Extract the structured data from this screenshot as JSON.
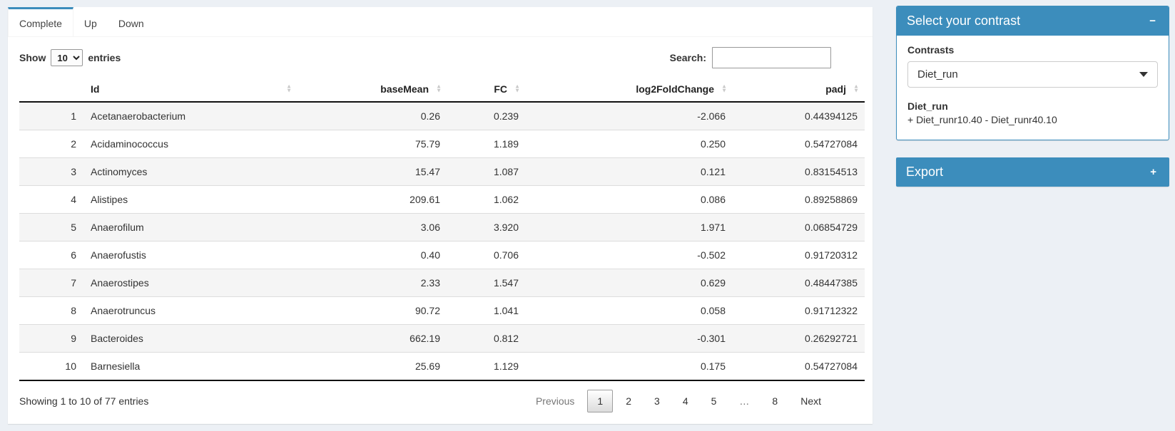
{
  "colors": {
    "primary": "#3c8dbc",
    "page_bg": "#ecf0f5"
  },
  "tabs": [
    {
      "label": "Complete",
      "active": true
    },
    {
      "label": "Up",
      "active": false
    },
    {
      "label": "Down",
      "active": false
    }
  ],
  "length_control": {
    "prefix": "Show",
    "value": "10",
    "suffix": "entries"
  },
  "search": {
    "label": "Search:",
    "value": ""
  },
  "table": {
    "columns": [
      {
        "label": "",
        "key": "index",
        "align": "left",
        "sortable": false
      },
      {
        "label": "Id",
        "key": "id",
        "align": "left",
        "sortable": true
      },
      {
        "label": "baseMean",
        "key": "baseMean",
        "align": "right",
        "sortable": true
      },
      {
        "label": "FC",
        "key": "fc",
        "align": "right",
        "sortable": true
      },
      {
        "label": "log2FoldChange",
        "key": "log2fc",
        "align": "right",
        "sortable": true
      },
      {
        "label": "padj",
        "key": "padj",
        "align": "right",
        "sortable": true
      }
    ],
    "rows": [
      {
        "index": "1",
        "id": "Acetanaerobacterium",
        "baseMean": "0.26",
        "fc": "0.239",
        "log2fc": "-2.066",
        "padj": "0.44394125"
      },
      {
        "index": "2",
        "id": "Acidaminococcus",
        "baseMean": "75.79",
        "fc": "1.189",
        "log2fc": "0.250",
        "padj": "0.54727084"
      },
      {
        "index": "3",
        "id": "Actinomyces",
        "baseMean": "15.47",
        "fc": "1.087",
        "log2fc": "0.121",
        "padj": "0.83154513"
      },
      {
        "index": "4",
        "id": "Alistipes",
        "baseMean": "209.61",
        "fc": "1.062",
        "log2fc": "0.086",
        "padj": "0.89258869"
      },
      {
        "index": "5",
        "id": "Anaerofilum",
        "baseMean": "3.06",
        "fc": "3.920",
        "log2fc": "1.971",
        "padj": "0.06854729"
      },
      {
        "index": "6",
        "id": "Anaerofustis",
        "baseMean": "0.40",
        "fc": "0.706",
        "log2fc": "-0.502",
        "padj": "0.91720312"
      },
      {
        "index": "7",
        "id": "Anaerostipes",
        "baseMean": "2.33",
        "fc": "1.547",
        "log2fc": "0.629",
        "padj": "0.48447385"
      },
      {
        "index": "8",
        "id": "Anaerotruncus",
        "baseMean": "90.72",
        "fc": "1.041",
        "log2fc": "0.058",
        "padj": "0.91712322"
      },
      {
        "index": "9",
        "id": "Bacteroides",
        "baseMean": "662.19",
        "fc": "0.812",
        "log2fc": "-0.301",
        "padj": "0.26292721"
      },
      {
        "index": "10",
        "id": "Barnesiella",
        "baseMean": "25.69",
        "fc": "1.129",
        "log2fc": "0.175",
        "padj": "0.54727084"
      }
    ]
  },
  "footer": {
    "info": "Showing 1 to 10 of 77 entries",
    "pagination": [
      {
        "label": "Previous",
        "type": "disabled"
      },
      {
        "label": "1",
        "type": "active"
      },
      {
        "label": "2",
        "type": "page"
      },
      {
        "label": "3",
        "type": "page"
      },
      {
        "label": "4",
        "type": "page"
      },
      {
        "label": "5",
        "type": "page"
      },
      {
        "label": "…",
        "type": "ellipsis"
      },
      {
        "label": "8",
        "type": "page"
      },
      {
        "label": "Next",
        "type": "page"
      }
    ]
  },
  "contrast_box": {
    "title": "Select your contrast",
    "collapse_icon": "−",
    "field_label": "Contrasts",
    "selected_contrast": "Diet_run",
    "detail_title": "Diet_run",
    "detail_text": "+ Diet_runr10.40 - Diet_runr40.10"
  },
  "export_box": {
    "title": "Export",
    "collapse_icon": "+"
  }
}
